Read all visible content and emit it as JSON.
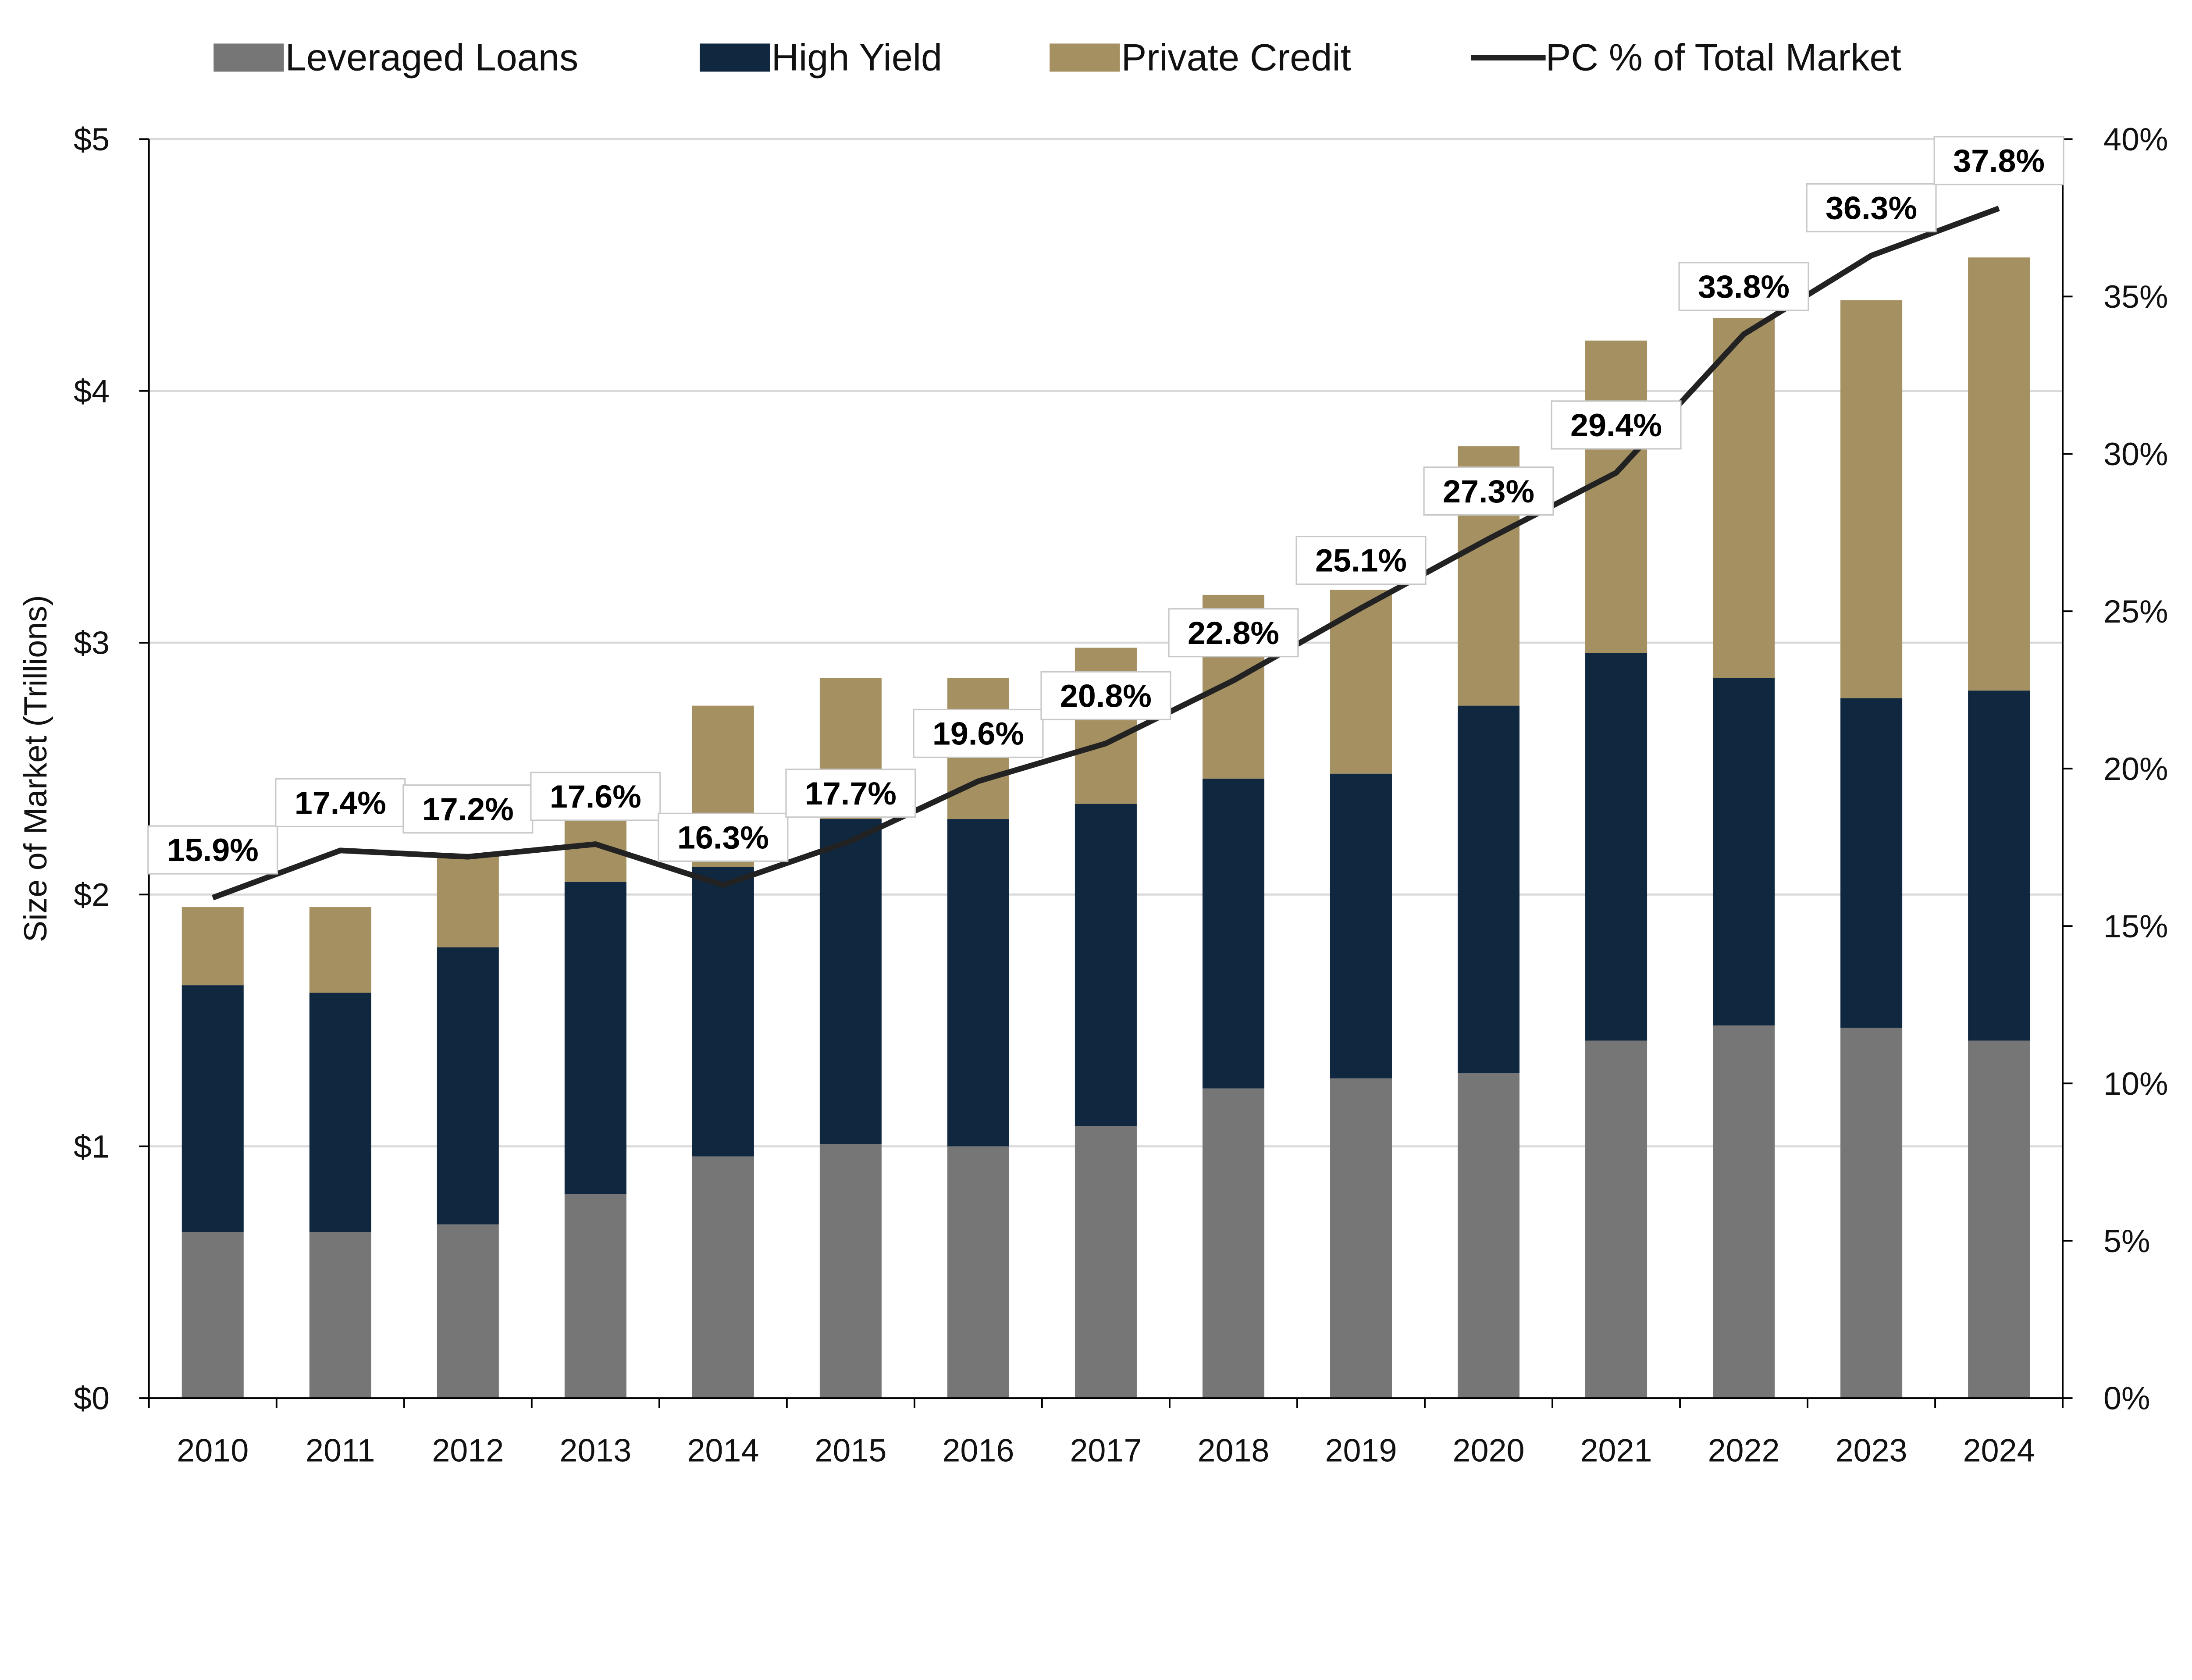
{
  "chart_data": {
    "type": "bar",
    "stacked": true,
    "categories": [
      "2010",
      "2011",
      "2012",
      "2013",
      "2014",
      "2015",
      "2016",
      "2017",
      "2018",
      "2019",
      "2020",
      "2021",
      "2022",
      "2023",
      "2024"
    ],
    "series": [
      {
        "name": "Leveraged Loans",
        "type": "bar",
        "axis": "left",
        "color": "#767676",
        "values": [
          0.66,
          0.66,
          0.69,
          0.81,
          0.96,
          1.01,
          1.0,
          1.08,
          1.23,
          1.27,
          1.29,
          1.42,
          1.48,
          1.47,
          1.42
        ]
      },
      {
        "name": "High Yield",
        "type": "bar",
        "axis": "left",
        "color": "#102740",
        "values": [
          0.98,
          0.95,
          1.1,
          1.24,
          1.15,
          1.29,
          1.3,
          1.28,
          1.23,
          1.21,
          1.46,
          1.54,
          1.38,
          1.31,
          1.39
        ]
      },
      {
        "name": "Private Credit",
        "type": "bar",
        "axis": "left",
        "color": "#A59062",
        "values": [
          0.31,
          0.34,
          0.37,
          0.25,
          0.64,
          0.56,
          0.56,
          0.62,
          0.73,
          0.73,
          1.03,
          1.24,
          1.43,
          1.58,
          1.72
        ]
      },
      {
        "name": "PC % of Total Market",
        "type": "line",
        "axis": "right",
        "color": "#222222",
        "values": [
          15.9,
          17.4,
          17.2,
          17.6,
          16.3,
          17.7,
          19.6,
          20.8,
          22.8,
          25.1,
          27.3,
          29.4,
          33.8,
          36.3,
          37.8
        ],
        "labels": [
          "15.9%",
          "17.4%",
          "17.2%",
          "17.6%",
          "16.3%",
          "17.7%",
          "19.6%",
          "20.8%",
          "22.8%",
          "25.1%",
          "27.3%",
          "29.4%",
          "33.8%",
          "36.3%",
          "37.8%"
        ]
      }
    ],
    "ylabel": "Size of Market (Trillions)",
    "ylim": [
      0,
      5
    ],
    "yticks": [
      "$0",
      "$1",
      "$2",
      "$3",
      "$4",
      "$5"
    ],
    "y2lim": [
      0,
      40
    ],
    "y2ticks": [
      "0%",
      "5%",
      "10%",
      "15%",
      "20%",
      "25%",
      "30%",
      "35%",
      "40%"
    ],
    "grid": true,
    "legend": "top"
  }
}
